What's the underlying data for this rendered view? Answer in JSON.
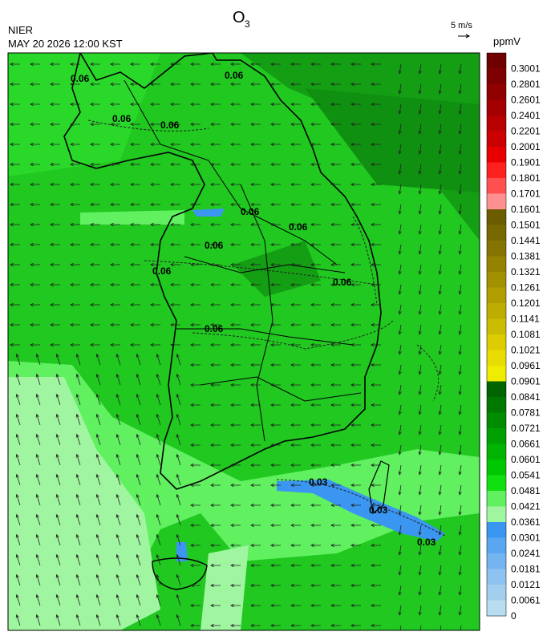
{
  "title": {
    "main": "O",
    "subscript": "3"
  },
  "agency": "NIER",
  "datetime": "MAY 20 2026 12:00 KST",
  "wind_reference": "5 m/s",
  "colorbar": {
    "unit": "ppmV",
    "levels": [
      0.3001,
      0.2801,
      0.2601,
      0.2401,
      0.2201,
      0.2001,
      0.1901,
      0.1801,
      0.1701,
      0.1601,
      0.1501,
      0.1441,
      0.1381,
      0.1321,
      0.1261,
      0.1201,
      0.1141,
      0.1081,
      0.1021,
      0.0961,
      0.0901,
      0.0841,
      0.0781,
      0.0721,
      0.0661,
      0.0601,
      0.0541,
      0.0481,
      0.0421,
      0.0361,
      0.0301,
      0.0241,
      0.0181,
      0.0121,
      0.0061,
      0
    ],
    "colors": [
      "#6e0000",
      "#7e0000",
      "#900000",
      "#a40000",
      "#b80000",
      "#cc0000",
      "#e80000",
      "#ff2020",
      "#ff5050",
      "#ff9090",
      "#6b5c00",
      "#786800",
      "#867400",
      "#948200",
      "#a29000",
      "#b09e00",
      "#beac00",
      "#ccbc00",
      "#dccc00",
      "#e8dc00",
      "#f0ec00",
      "#006400",
      "#007800",
      "#008c00",
      "#00a000",
      "#00b400",
      "#00c800",
      "#10e010",
      "#60f060",
      "#a0f5a0",
      "#3a96f0",
      "#5aa6f0",
      "#74b4f0",
      "#8ec2f0",
      "#a4ceee",
      "#b8dcf0"
    ]
  },
  "contour_labels": [
    "0.06",
    "0.06",
    "0.06",
    "0.06",
    "0.06",
    "0.06",
    "0.06",
    "0.06",
    "0.06",
    "0.06",
    "0.03",
    "0.03",
    "0.03"
  ]
}
